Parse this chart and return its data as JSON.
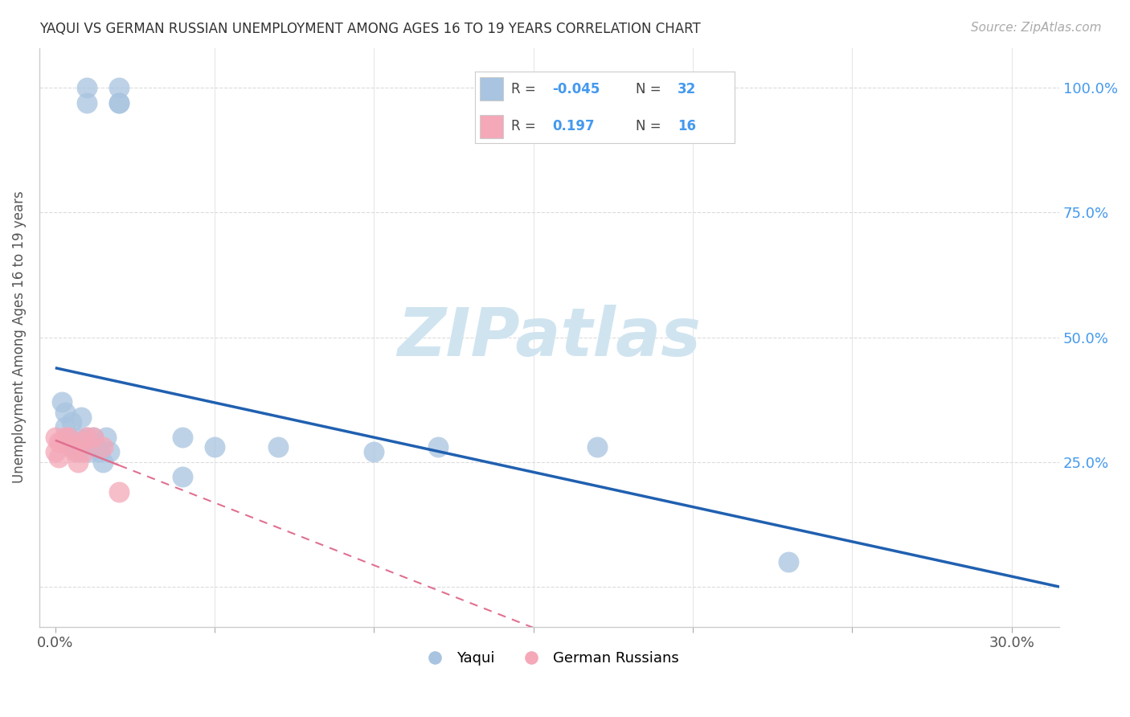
{
  "title": "YAQUI VS GERMAN RUSSIAN UNEMPLOYMENT AMONG AGES 16 TO 19 YEARS CORRELATION CHART",
  "source": "Source: ZipAtlas.com",
  "ylabel": "Unemployment Among Ages 16 to 19 years",
  "xlim": [
    -0.005,
    0.315
  ],
  "ylim": [
    -0.08,
    1.08
  ],
  "yaqui_R": "-0.045",
  "yaqui_N": "32",
  "german_R": "0.197",
  "german_N": "16",
  "yaqui_color": "#a8c4e0",
  "german_color": "#f4a8b8",
  "yaqui_line_color": "#2060b0",
  "german_line_color": "#e07090",
  "watermark_color": "#d0e4f0",
  "background_color": "#ffffff",
  "grid_color": "#d8d8d8",
  "yaqui_x": [
    0.01,
    0.01,
    0.02,
    0.02,
    0.02,
    0.002,
    0.003,
    0.003,
    0.004,
    0.005,
    0.005,
    0.006,
    0.007,
    0.007,
    0.008,
    0.009,
    0.01,
    0.011,
    0.012,
    0.013,
    0.014,
    0.015,
    0.016,
    0.017,
    0.04,
    0.04,
    0.05,
    0.07,
    0.1,
    0.12,
    0.17,
    0.23
  ],
  "yaqui_y": [
    1.0,
    0.97,
    1.0,
    0.97,
    0.97,
    0.37,
    0.35,
    0.32,
    0.3,
    0.33,
    0.29,
    0.28,
    0.3,
    0.27,
    0.34,
    0.29,
    0.3,
    0.27,
    0.3,
    0.28,
    0.27,
    0.25,
    0.3,
    0.27,
    0.3,
    0.22,
    0.28,
    0.28,
    0.27,
    0.28,
    0.28,
    0.05
  ],
  "german_x": [
    0.0,
    0.0,
    0.001,
    0.001,
    0.002,
    0.003,
    0.004,
    0.005,
    0.006,
    0.007,
    0.008,
    0.009,
    0.01,
    0.012,
    0.015,
    0.02
  ],
  "german_y": [
    0.3,
    0.27,
    0.29,
    0.26,
    0.29,
    0.3,
    0.3,
    0.28,
    0.27,
    0.25,
    0.29,
    0.27,
    0.3,
    0.3,
    0.28,
    0.19
  ],
  "xtick_positions": [
    0.0,
    0.05,
    0.1,
    0.15,
    0.2,
    0.25,
    0.3
  ],
  "xtick_labels": [
    "0.0%",
    "",
    "",
    "",
    "",
    "",
    "30.0%"
  ],
  "ytick_positions": [
    0.0,
    0.25,
    0.5,
    0.75,
    1.0
  ],
  "ytick_labels_right": [
    "",
    "25.0%",
    "50.0%",
    "75.0%",
    "100.0%"
  ]
}
